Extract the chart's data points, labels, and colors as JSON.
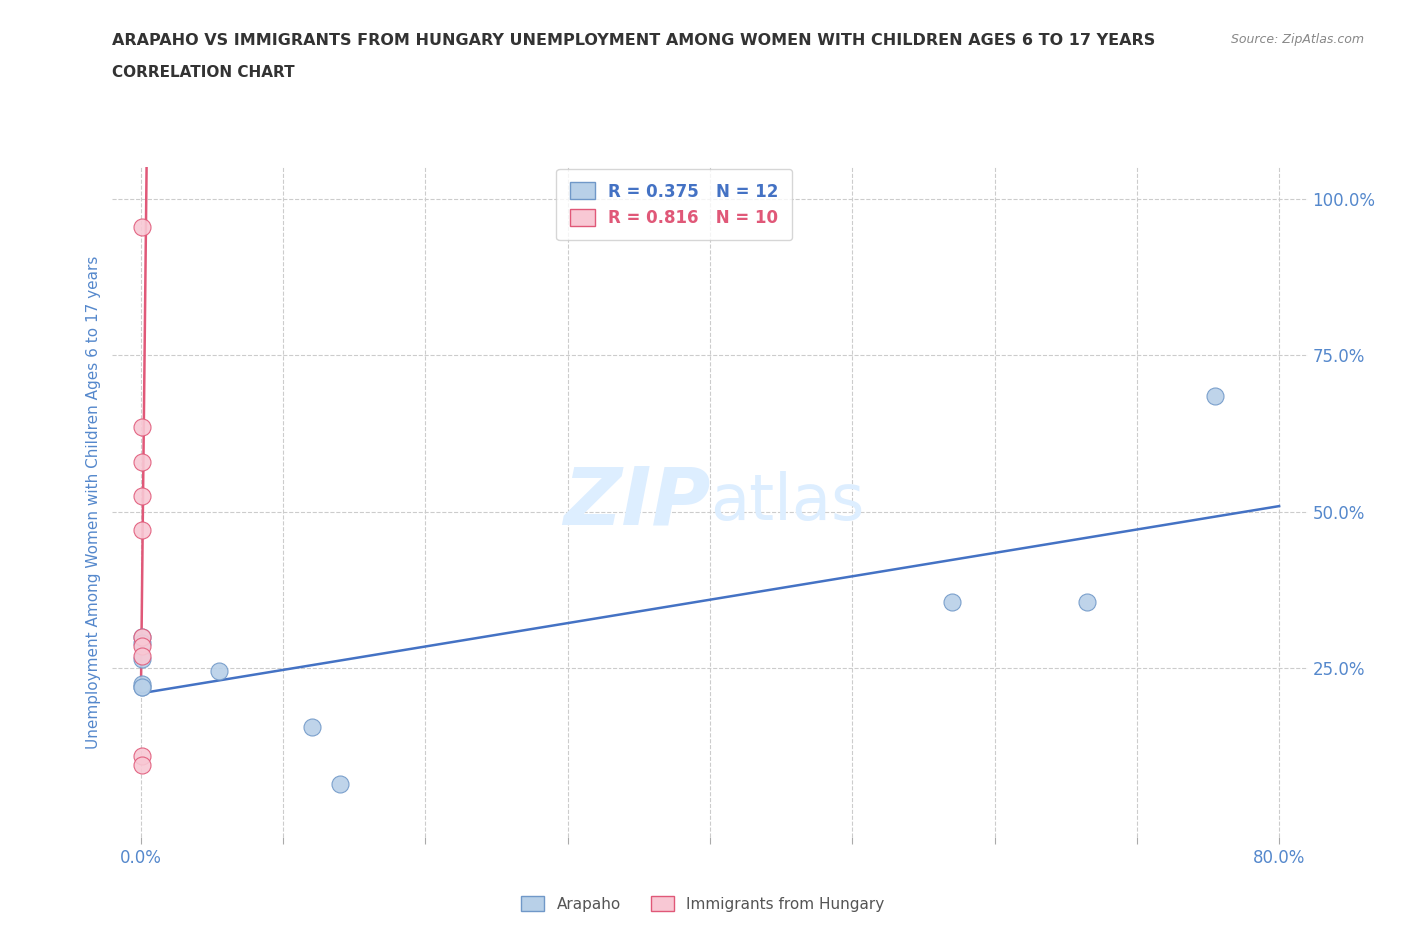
{
  "title": "ARAPAHO VS IMMIGRANTS FROM HUNGARY UNEMPLOYMENT AMONG WOMEN WITH CHILDREN AGES 6 TO 17 YEARS",
  "subtitle": "CORRELATION CHART",
  "source": "Source: ZipAtlas.com",
  "ylabel": "Unemployment Among Women with Children Ages 6 to 17 years",
  "xlim": [
    -0.02,
    0.82
  ],
  "ylim": [
    -0.02,
    1.05
  ],
  "xticks": [
    0.0,
    0.1,
    0.2,
    0.3,
    0.4,
    0.5,
    0.6,
    0.7,
    0.8
  ],
  "yticks_right": [
    0.0,
    0.25,
    0.5,
    0.75,
    1.0
  ],
  "yticklabels_right": [
    "",
    "25.0%",
    "50.0%",
    "75.0%",
    "100.0%"
  ],
  "arapaho_x": [
    0.001,
    0.001,
    0.001,
    0.001,
    0.001,
    0.001,
    0.055,
    0.12,
    0.14,
    0.57,
    0.665,
    0.755
  ],
  "arapaho_y": [
    0.265,
    0.3,
    0.29,
    0.22,
    0.225,
    0.22,
    0.245,
    0.155,
    0.065,
    0.355,
    0.355,
    0.685
  ],
  "hungary_x": [
    0.001,
    0.001,
    0.001,
    0.001,
    0.001,
    0.001,
    0.001,
    0.001,
    0.001,
    0.001
  ],
  "hungary_y": [
    0.955,
    0.635,
    0.58,
    0.525,
    0.47,
    0.3,
    0.285,
    0.27,
    0.11,
    0.095
  ],
  "arapaho_R": 0.375,
  "arapaho_N": 12,
  "hungary_R": 0.816,
  "hungary_N": 10,
  "arapaho_color": "#b8d0e8",
  "arapaho_line_color": "#4472c4",
  "arapaho_edge_color": "#7098c8",
  "hungary_color": "#f8c8d4",
  "hungary_line_color": "#e05878",
  "hungary_edge_color": "#e05878",
  "bg_color": "#ffffff",
  "grid_color": "#cccccc",
  "title_color": "#333333",
  "axis_tick_color": "#5588cc",
  "watermark_zip": "ZIP",
  "watermark_atlas": "atlas",
  "watermark_color": "#ddeeff"
}
